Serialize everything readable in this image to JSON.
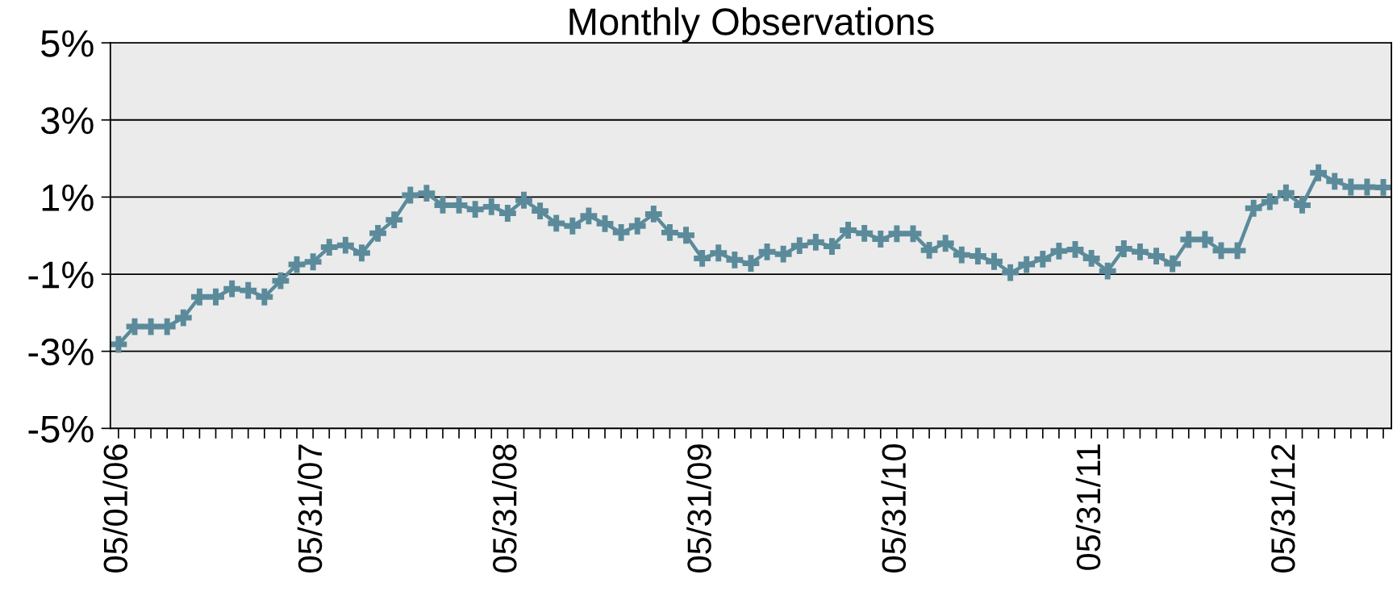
{
  "chart_data": {
    "type": "line",
    "title": "Monthly Observations",
    "categories": [
      "05/01/06",
      null,
      null,
      null,
      null,
      null,
      null,
      null,
      null,
      null,
      null,
      null,
      "05/31/07",
      null,
      null,
      null,
      null,
      null,
      null,
      null,
      null,
      null,
      null,
      null,
      "05/31/08",
      null,
      null,
      null,
      null,
      null,
      null,
      null,
      null,
      null,
      null,
      null,
      "05/31/09",
      null,
      null,
      null,
      null,
      null,
      null,
      null,
      null,
      null,
      null,
      null,
      "05/31/10",
      null,
      null,
      null,
      null,
      null,
      null,
      null,
      null,
      null,
      null,
      null,
      "05/31/11",
      null,
      null,
      null,
      null,
      null,
      null,
      null,
      null,
      null,
      null,
      null,
      "05/31/12",
      null,
      null,
      null,
      null,
      null,
      null
    ],
    "series": [
      {
        "color": "#5b8b9b",
        "values": [
          -2.82,
          -2.36,
          -2.36,
          -2.36,
          -2.13,
          -1.59,
          -1.59,
          -1.38,
          -1.42,
          -1.59,
          -1.17,
          -0.75,
          -0.68,
          -0.3,
          -0.25,
          -0.45,
          0.06,
          0.41,
          1.05,
          1.1,
          0.79,
          0.79,
          0.68,
          0.75,
          0.58,
          0.92,
          0.64,
          0.32,
          0.25,
          0.51,
          0.31,
          0.08,
          0.25,
          0.56,
          0.08,
          0.01,
          -0.59,
          -0.45,
          -0.63,
          -0.72,
          -0.42,
          -0.48,
          -0.26,
          -0.17,
          -0.28,
          0.14,
          0.06,
          -0.09,
          0.05,
          0.05,
          -0.38,
          -0.2,
          -0.5,
          -0.53,
          -0.67,
          -0.96,
          -0.75,
          -0.61,
          -0.4,
          -0.36,
          -0.59,
          -0.92,
          -0.34,
          -0.42,
          -0.53,
          -0.73,
          -0.1,
          -0.1,
          -0.39,
          -0.39,
          0.71,
          0.88,
          1.11,
          0.79,
          1.63,
          1.41,
          1.26,
          1.26,
          1.25
        ]
      }
    ],
    "ylim": [
      -5,
      5
    ],
    "yticks": [
      {
        "value": -5,
        "label": "-5%"
      },
      {
        "value": -3,
        "label": "-3%"
      },
      {
        "value": -1,
        "label": "-1%"
      },
      {
        "value": 1,
        "label": "1%"
      },
      {
        "value": 3,
        "label": "3%"
      },
      {
        "value": 5,
        "label": "5%"
      }
    ],
    "grid": "y",
    "marker": "cross",
    "line_style": "solid"
  }
}
